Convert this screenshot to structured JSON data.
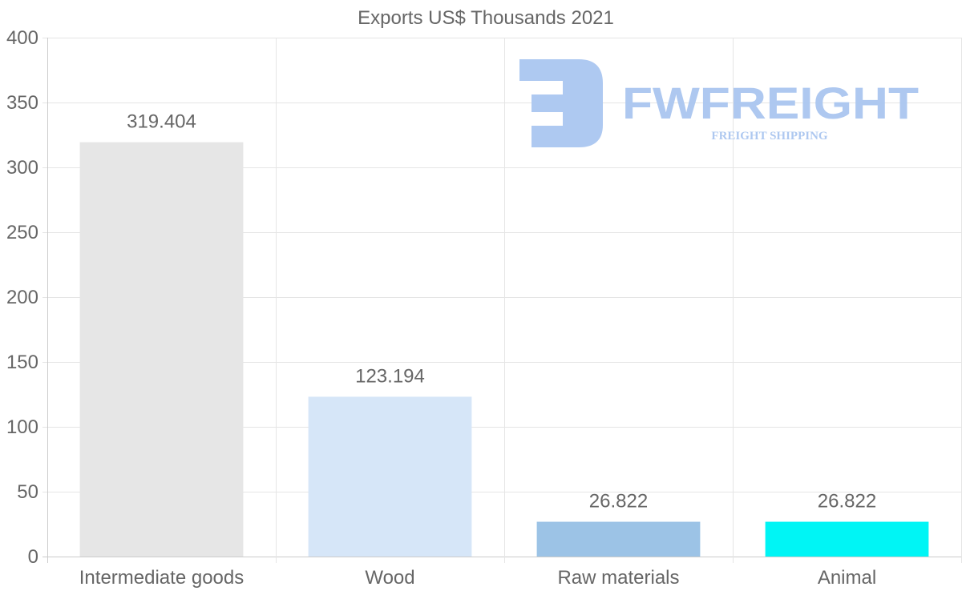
{
  "chart_data": {
    "type": "bar",
    "title": "Exports US$ Thousands 2021",
    "categories": [
      "Intermediate goods",
      "Wood",
      "Raw materials",
      "Animal"
    ],
    "values": [
      319.404,
      123.194,
      26.822,
      26.822
    ],
    "value_labels": [
      "319.404",
      "123.194",
      "26.822",
      "26.822"
    ],
    "colors": [
      "#e6e6e6",
      "#d6e6f8",
      "#9cc3e6",
      "#00f5f5"
    ],
    "ylim": [
      0,
      400
    ],
    "yticks": [
      0,
      50,
      100,
      150,
      200,
      250,
      300,
      350,
      400
    ],
    "xlabel": "",
    "ylabel": "",
    "grid": true,
    "legend": "none"
  },
  "watermark": {
    "brand": "FWFREIGHT",
    "tagline": "FREIGHT SHIPPING",
    "color": "#aac6f0"
  }
}
